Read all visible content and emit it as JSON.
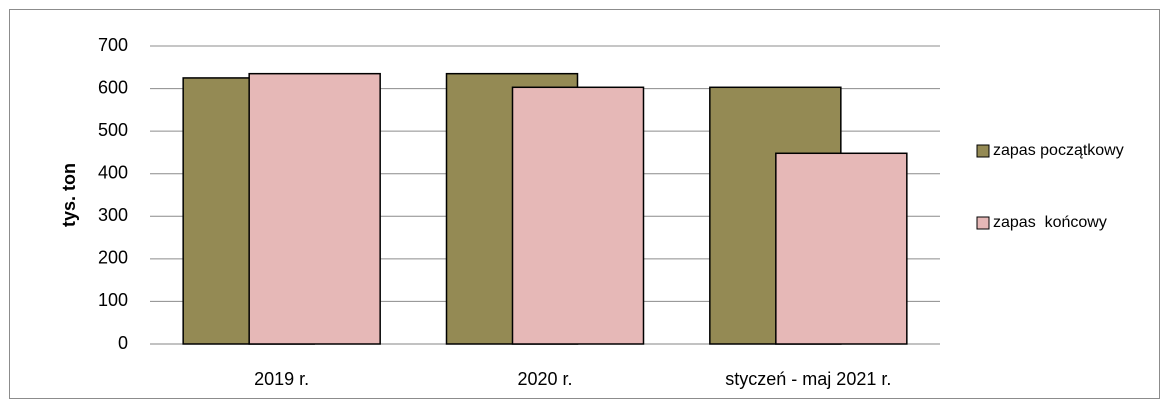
{
  "chart_data": {
    "type": "bar",
    "title": "",
    "xlabel": "",
    "ylabel": "tys. ton",
    "ylim": [
      0,
      700
    ],
    "yticks": [
      0,
      100,
      200,
      300,
      400,
      500,
      600,
      700
    ],
    "grid": true,
    "legend_position": "right",
    "categories": [
      "2019 r.",
      "2020 r.",
      "styczeń - maj 2021 r."
    ],
    "series": [
      {
        "name": "zapas początkowy",
        "color": "#948a54",
        "values": [
          625,
          635,
          603
        ]
      },
      {
        "name": "zapas  końcowy",
        "color": "#e6b8b7",
        "values": [
          635,
          603,
          448
        ]
      }
    ]
  }
}
